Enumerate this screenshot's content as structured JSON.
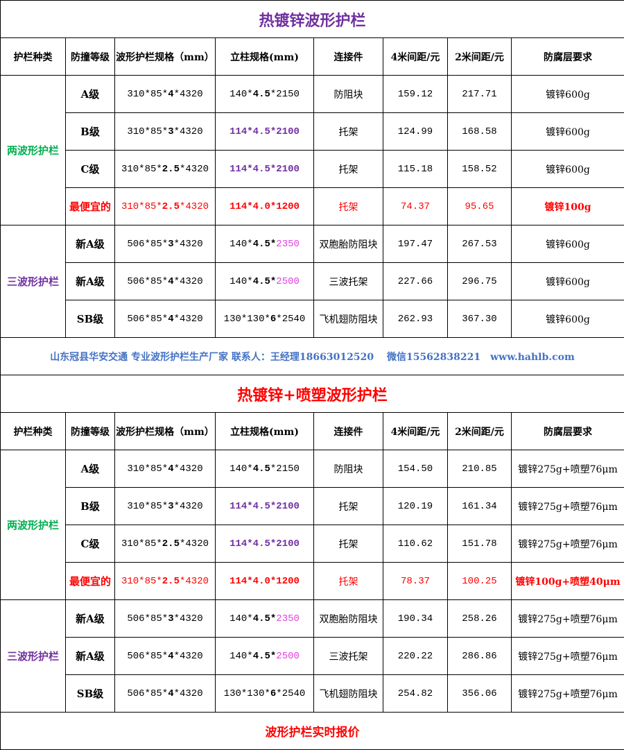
{
  "colors": {
    "title1": "#7030a0",
    "title2": "#ff0000",
    "two_wave": "#00b050",
    "three_wave": "#7030a0",
    "footer": "#4472c4",
    "highlight": "#ff0000"
  },
  "headers": [
    "护栏种类",
    "防撞等级",
    "波形护栏规格（mm）",
    "立柱规格(mm)",
    "连接件",
    "4米间距/元",
    "2米间距/元",
    "防腐层要求"
  ],
  "footer": "山东冠县华安交通 专业波形护栏生产厂家 联系人：王经理18663012520　 微信15562838221　www.hahlb.com",
  "final_label": "波形护栏实时报价",
  "tables": [
    {
      "title": "热镀锌波形护栏",
      "title_class": "t1",
      "groups": [
        {
          "name": "两波形护栏",
          "cls": "g2",
          "rows": [
            {
              "grade": [
                [
                  "A级",
                  ""
                ]
              ],
              "spec": [
                [
                  "310*85*",
                  ""
                ],
                [
                  "4",
                  "b"
                ],
                [
                  "*4320",
                  ""
                ]
              ],
              "post": [
                [
                  "140*",
                  ""
                ],
                [
                  "4.5",
                  "b"
                ],
                [
                  "*2150",
                  ""
                ]
              ],
              "conn": [
                [
                  "防阻块",
                  ""
                ]
              ],
              "p4": [
                [
                  "159.12",
                  ""
                ]
              ],
              "p2": [
                [
                  "217.71",
                  ""
                ]
              ],
              "coat": [
                [
                  "镀锌600g",
                  ""
                ]
              ]
            },
            {
              "grade": [
                [
                  "B级",
                  ""
                ]
              ],
              "spec": [
                [
                  "310*85*",
                  ""
                ],
                [
                  "3",
                  "b"
                ],
                [
                  "*4320",
                  ""
                ]
              ],
              "post": [
                [
                  "114*4.5*2100",
                  "p"
                ]
              ],
              "conn": [
                [
                  "托架",
                  ""
                ]
              ],
              "p4": [
                [
                  "124.99",
                  ""
                ]
              ],
              "p2": [
                [
                  "168.58",
                  ""
                ]
              ],
              "coat": [
                [
                  "镀锌600g",
                  ""
                ]
              ]
            },
            {
              "grade": [
                [
                  "C级",
                  ""
                ]
              ],
              "spec": [
                [
                  "310*85*",
                  ""
                ],
                [
                  "2.5",
                  "b"
                ],
                [
                  "*4320",
                  ""
                ]
              ],
              "post": [
                [
                  "114*4.5*2100",
                  "p"
                ]
              ],
              "conn": [
                [
                  "托架",
                  ""
                ]
              ],
              "p4": [
                [
                  "115.18",
                  ""
                ]
              ],
              "p2": [
                [
                  "158.52",
                  ""
                ]
              ],
              "coat": [
                [
                  "镀锌600g",
                  ""
                ]
              ]
            },
            {
              "grade": [
                [
                  "最便宜的",
                  "rb"
                ]
              ],
              "spec": [
                [
                  "310*85*",
                  "r"
                ],
                [
                  "2.5",
                  "rb"
                ],
                [
                  "*4320",
                  "r"
                ]
              ],
              "post": [
                [
                  "114*4.0*1200",
                  "rb"
                ]
              ],
              "conn": [
                [
                  "托架",
                  "r"
                ]
              ],
              "p4": [
                [
                  "74.37",
                  "r"
                ]
              ],
              "p2": [
                [
                  "95.65",
                  "r"
                ]
              ],
              "coat": [
                [
                  "镀锌100g",
                  "rb"
                ]
              ]
            }
          ]
        },
        {
          "name": "三波形护栏",
          "cls": "g3",
          "rows": [
            {
              "grade": [
                [
                  "新A级",
                  ""
                ]
              ],
              "spec": [
                [
                  "506*85*",
                  ""
                ],
                [
                  "3",
                  "b"
                ],
                [
                  "*4320",
                  ""
                ]
              ],
              "post": [
                [
                  "140*",
                  ""
                ],
                [
                  "4.5*",
                  "b"
                ],
                [
                  "2350",
                  "m"
                ]
              ],
              "conn": [
                [
                  "双胞胎防阻块",
                  ""
                ]
              ],
              "p4": [
                [
                  "197.47",
                  ""
                ]
              ],
              "p2": [
                [
                  "267.53",
                  ""
                ]
              ],
              "coat": [
                [
                  "镀锌600g",
                  ""
                ]
              ]
            },
            {
              "grade": [
                [
                  "新A级",
                  ""
                ]
              ],
              "spec": [
                [
                  "506*85*",
                  ""
                ],
                [
                  "4",
                  "b"
                ],
                [
                  "*4320",
                  ""
                ]
              ],
              "post": [
                [
                  "140*",
                  ""
                ],
                [
                  "4.5*",
                  "b"
                ],
                [
                  "2500",
                  "m"
                ]
              ],
              "conn": [
                [
                  "三波托架",
                  ""
                ]
              ],
              "p4": [
                [
                  "227.66",
                  ""
                ]
              ],
              "p2": [
                [
                  "296.75",
                  ""
                ]
              ],
              "coat": [
                [
                  "镀锌600g",
                  ""
                ]
              ]
            },
            {
              "grade": [
                [
                  "SB级",
                  ""
                ]
              ],
              "spec": [
                [
                  "506*85*",
                  ""
                ],
                [
                  "4",
                  "b"
                ],
                [
                  "*4320",
                  ""
                ]
              ],
              "post": [
                [
                  "130*130*",
                  ""
                ],
                [
                  "6",
                  "b"
                ],
                [
                  "*2540",
                  ""
                ]
              ],
              "conn": [
                [
                  "飞机翅防阻块",
                  ""
                ]
              ],
              "p4": [
                [
                  "262.93",
                  ""
                ]
              ],
              "p2": [
                [
                  "367.30",
                  ""
                ]
              ],
              "coat": [
                [
                  "镀锌600g",
                  ""
                ]
              ]
            }
          ]
        }
      ]
    },
    {
      "title": "热镀锌+喷塑波形护栏",
      "title_class": "t2",
      "groups": [
        {
          "name": "两波形护栏",
          "cls": "g2",
          "rows": [
            {
              "grade": [
                [
                  "A级",
                  ""
                ]
              ],
              "spec": [
                [
                  "310*85*",
                  ""
                ],
                [
                  "4",
                  "b"
                ],
                [
                  "*4320",
                  ""
                ]
              ],
              "post": [
                [
                  "140*",
                  ""
                ],
                [
                  "4.5",
                  "b"
                ],
                [
                  "*2150",
                  ""
                ]
              ],
              "conn": [
                [
                  "防阻块",
                  ""
                ]
              ],
              "p4": [
                [
                  "154.50",
                  ""
                ]
              ],
              "p2": [
                [
                  "210.85",
                  ""
                ]
              ],
              "coat": [
                [
                  "镀锌275g+喷塑76μm",
                  ""
                ]
              ]
            },
            {
              "grade": [
                [
                  "B级",
                  ""
                ]
              ],
              "spec": [
                [
                  "310*85*",
                  ""
                ],
                [
                  "3",
                  "b"
                ],
                [
                  "*4320",
                  ""
                ]
              ],
              "post": [
                [
                  "114*4.5*2100",
                  "p"
                ]
              ],
              "conn": [
                [
                  "托架",
                  ""
                ]
              ],
              "p4": [
                [
                  "120.19",
                  ""
                ]
              ],
              "p2": [
                [
                  "161.34",
                  ""
                ]
              ],
              "coat": [
                [
                  "镀锌275g+喷塑76μm",
                  ""
                ]
              ]
            },
            {
              "grade": [
                [
                  "C级",
                  ""
                ]
              ],
              "spec": [
                [
                  "310*85*",
                  ""
                ],
                [
                  "2.5",
                  "b"
                ],
                [
                  "*4320",
                  ""
                ]
              ],
              "post": [
                [
                  "114*4.5*2100",
                  "p"
                ]
              ],
              "conn": [
                [
                  "托架",
                  ""
                ]
              ],
              "p4": [
                [
                  "110.62",
                  ""
                ]
              ],
              "p2": [
                [
                  "151.78",
                  ""
                ]
              ],
              "coat": [
                [
                  "镀锌275g+喷塑76μm",
                  ""
                ]
              ]
            },
            {
              "grade": [
                [
                  "最便宜的",
                  "rb"
                ]
              ],
              "spec": [
                [
                  "310*85*",
                  "r"
                ],
                [
                  "2.5",
                  "rb"
                ],
                [
                  "*4320",
                  "r"
                ]
              ],
              "post": [
                [
                  "114*4.0*1200",
                  "rb"
                ]
              ],
              "conn": [
                [
                  "托架",
                  "r"
                ]
              ],
              "p4": [
                [
                  "78.37",
                  "r"
                ]
              ],
              "p2": [
                [
                  "100.25",
                  "r"
                ]
              ],
              "coat": [
                [
                  "镀锌100g+喷塑40μm",
                  "rb"
                ]
              ]
            }
          ]
        },
        {
          "name": "三波形护栏",
          "cls": "g3",
          "rows": [
            {
              "grade": [
                [
                  "新A级",
                  ""
                ]
              ],
              "spec": [
                [
                  "506*85*",
                  ""
                ],
                [
                  "3",
                  "b"
                ],
                [
                  "*4320",
                  ""
                ]
              ],
              "post": [
                [
                  "140*",
                  ""
                ],
                [
                  "4.5*",
                  "b"
                ],
                [
                  "2350",
                  "m"
                ]
              ],
              "conn": [
                [
                  "双胞胎防阻块",
                  ""
                ]
              ],
              "p4": [
                [
                  "190.34",
                  ""
                ]
              ],
              "p2": [
                [
                  "258.26",
                  ""
                ]
              ],
              "coat": [
                [
                  "镀锌275g+喷塑76μm",
                  ""
                ]
              ]
            },
            {
              "grade": [
                [
                  "新A级",
                  ""
                ]
              ],
              "spec": [
                [
                  "506*85*",
                  ""
                ],
                [
                  "4",
                  "b"
                ],
                [
                  "*4320",
                  ""
                ]
              ],
              "post": [
                [
                  "140*",
                  ""
                ],
                [
                  "4.5*",
                  "b"
                ],
                [
                  "2500",
                  "m"
                ]
              ],
              "conn": [
                [
                  "三波托架",
                  ""
                ]
              ],
              "p4": [
                [
                  "220.22",
                  ""
                ]
              ],
              "p2": [
                [
                  "286.86",
                  ""
                ]
              ],
              "coat": [
                [
                  "镀锌275g+喷塑76μm",
                  ""
                ]
              ]
            },
            {
              "grade": [
                [
                  "SB级",
                  ""
                ]
              ],
              "spec": [
                [
                  "506*85*",
                  ""
                ],
                [
                  "4",
                  "b"
                ],
                [
                  "*4320",
                  ""
                ]
              ],
              "post": [
                [
                  "130*130*",
                  ""
                ],
                [
                  "6",
                  "b"
                ],
                [
                  "*2540",
                  ""
                ]
              ],
              "conn": [
                [
                  "飞机翅防阻块",
                  ""
                ]
              ],
              "p4": [
                [
                  "254.82",
                  ""
                ]
              ],
              "p2": [
                [
                  "356.06",
                  ""
                ]
              ],
              "coat": [
                [
                  "镀锌275g+喷塑76μm",
                  ""
                ]
              ]
            }
          ]
        }
      ]
    }
  ]
}
